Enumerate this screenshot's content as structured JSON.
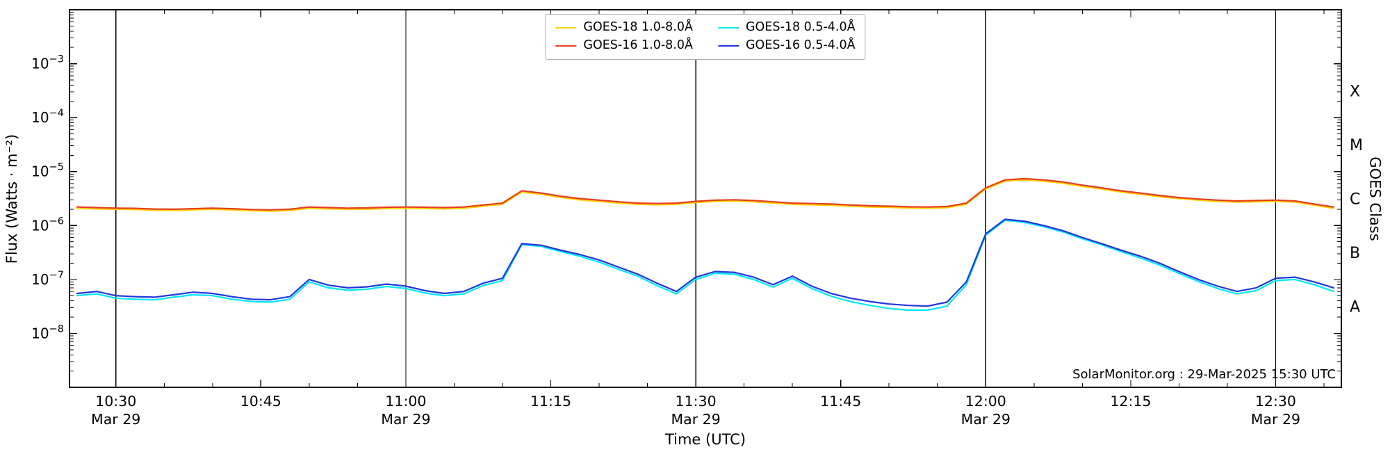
{
  "figure": {
    "watermark": "SolarMonitor.org : 29-Mar-2025 15:30 UTC",
    "xlabel": "Time (UTC)",
    "ylabel_left": "Flux (Watts · m⁻²)",
    "ylabel_right": "GOES Class",
    "background_color": "#ffffff",
    "frame_color": "#000000"
  },
  "chart_data": {
    "type": "line",
    "title": "",
    "xlabel": "Time (UTC)",
    "ylabel": "Flux (Watts · m⁻²)",
    "ylabel_right": "GOES Class",
    "y_scale": "log",
    "ylim": [
      1e-09,
      0.01
    ],
    "x_domain_minutes": [
      25.2,
      156.8
    ],
    "x_minutes_reference": "minutes after 10:00 UTC on Mar 29",
    "x_minor_tick_step_minutes": 5,
    "grid": "vertical black lines at 30-minute marks only",
    "legend_position": "top-center",
    "vertical_line_minutes": [
      30,
      60,
      90,
      120,
      150
    ],
    "x_ticks": [
      {
        "t": 30,
        "label": "10:30",
        "date": "Mar 29"
      },
      {
        "t": 45,
        "label": "10:45"
      },
      {
        "t": 60,
        "label": "11:00",
        "date": "Mar 29"
      },
      {
        "t": 75,
        "label": "11:15"
      },
      {
        "t": 90,
        "label": "11:30",
        "date": "Mar 29"
      },
      {
        "t": 105,
        "label": "11:45"
      },
      {
        "t": 120,
        "label": "12:00",
        "date": "Mar 29"
      },
      {
        "t": 135,
        "label": "12:15"
      },
      {
        "t": 150,
        "label": "12:30",
        "date": "Mar 29"
      }
    ],
    "y_tick_exponents": [
      -3,
      -4,
      -5,
      -6,
      -7,
      -8
    ],
    "goes_class_labels": [
      {
        "label": "X",
        "log10_flux": -3.5
      },
      {
        "label": "M",
        "log10_flux": -4.5
      },
      {
        "label": "C",
        "log10_flux": -5.5
      },
      {
        "label": "B",
        "log10_flux": -6.5
      },
      {
        "label": "A",
        "log10_flux": -7.5
      }
    ],
    "t_minutes": [
      26,
      28,
      30,
      32,
      34,
      36,
      38,
      40,
      42,
      44,
      46,
      48,
      50,
      52,
      54,
      56,
      58,
      60,
      62,
      64,
      66,
      68,
      70,
      72,
      74,
      76,
      78,
      80,
      82,
      84,
      86,
      88,
      90,
      92,
      94,
      96,
      98,
      100,
      102,
      104,
      106,
      108,
      110,
      112,
      114,
      116,
      118,
      120,
      122,
      124,
      126,
      128,
      130,
      132,
      134,
      136,
      138,
      140,
      142,
      144,
      146,
      148,
      150,
      152,
      154,
      156
    ],
    "series": [
      {
        "name": "GOES-18 1.0-8.0Å",
        "color": "#ffd200",
        "values": [
          2.09e-06,
          2.04e-06,
          2e-06,
          1.98e-06,
          1.92e-06,
          1.9e-06,
          1.95e-06,
          2e-06,
          1.95e-06,
          1.88e-06,
          1.85e-06,
          1.9e-06,
          2.09e-06,
          2.04e-06,
          2e-06,
          2.01e-06,
          2.07e-06,
          2.09e-06,
          2.07e-06,
          2.04e-06,
          2.09e-06,
          2.28e-06,
          2.47e-06,
          4.18e-06,
          3.8e-06,
          3.33e-06,
          2.99e-06,
          2.8e-06,
          2.61e-06,
          2.47e-06,
          2.42e-06,
          2.47e-06,
          2.66e-06,
          2.8e-06,
          2.85e-06,
          2.76e-06,
          2.61e-06,
          2.47e-06,
          2.42e-06,
          2.38e-06,
          2.28e-06,
          2.2e-06,
          2.17e-06,
          2.11e-06,
          2.09e-06,
          2.14e-06,
          2.47e-06,
          4.75e-06,
          6.65e-06,
          7.03e-06,
          6.65e-06,
          6.08e-06,
          5.32e-06,
          4.75e-06,
          4.18e-06,
          3.8e-06,
          3.42e-06,
          3.14e-06,
          2.95e-06,
          2.8e-06,
          2.71e-06,
          2.76e-06,
          2.8e-06,
          2.71e-06,
          2.38e-06,
          2.09e-06
        ]
      },
      {
        "name": "GOES-18 0.5-4.0Å",
        "color": "#00e8f0",
        "values": [
          5e-08,
          5.4e-08,
          4.5e-08,
          4.3e-08,
          4.2e-08,
          4.7e-08,
          5.2e-08,
          5e-08,
          4.3e-08,
          3.9e-08,
          3.8e-08,
          4.3e-08,
          9e-08,
          7e-08,
          6.3e-08,
          6.6e-08,
          7.4e-08,
          6.8e-08,
          5.6e-08,
          5e-08,
          5.4e-08,
          7.7e-08,
          9.5e-08,
          4.4e-07,
          4.1e-07,
          3.3e-07,
          2.7e-07,
          2.1e-07,
          1.55e-07,
          1.15e-07,
          7.7e-08,
          5.4e-08,
          1e-07,
          1.3e-07,
          1.25e-07,
          1e-07,
          7.2e-08,
          1.05e-07,
          6.8e-08,
          4.9e-08,
          3.9e-08,
          3.3e-08,
          2.9e-08,
          2.7e-08,
          2.7e-08,
          3.2e-08,
          8e-08,
          6.6e-07,
          1.25e-06,
          1.15e-06,
          9.5e-07,
          7.6e-07,
          5.7e-07,
          4.4e-07,
          3.3e-07,
          2.5e-07,
          1.85e-07,
          1.3e-07,
          9.2e-08,
          6.8e-08,
          5.4e-08,
          6.2e-08,
          9.5e-08,
          1e-07,
          8e-08,
          6e-08
        ]
      },
      {
        "name": "GOES-16 1.0-8.0Å",
        "color": "#e83d20",
        "values": [
          2.2e-06,
          2.15e-06,
          2.1e-06,
          2.08e-06,
          2.02e-06,
          2e-06,
          2.05e-06,
          2.1e-06,
          2.05e-06,
          1.98e-06,
          1.95e-06,
          2e-06,
          2.2e-06,
          2.15e-06,
          2.1e-06,
          2.12e-06,
          2.18e-06,
          2.2e-06,
          2.18e-06,
          2.15e-06,
          2.2e-06,
          2.4e-06,
          2.6e-06,
          4.4e-06,
          4e-06,
          3.5e-06,
          3.15e-06,
          2.95e-06,
          2.75e-06,
          2.6e-06,
          2.55e-06,
          2.6e-06,
          2.8e-06,
          2.95e-06,
          3e-06,
          2.9e-06,
          2.75e-06,
          2.6e-06,
          2.55e-06,
          2.5e-06,
          2.4e-06,
          2.32e-06,
          2.28e-06,
          2.22e-06,
          2.2e-06,
          2.25e-06,
          2.6e-06,
          5e-06,
          7e-06,
          7.4e-06,
          7e-06,
          6.4e-06,
          5.6e-06,
          5e-06,
          4.4e-06,
          4e-06,
          3.6e-06,
          3.3e-06,
          3.1e-06,
          2.95e-06,
          2.85e-06,
          2.9e-06,
          2.95e-06,
          2.85e-06,
          2.5e-06,
          2.2e-06
        ]
      },
      {
        "name": "GOES-16 0.5-4.0Å",
        "color": "#2136e0",
        "values": [
          5.5e-08,
          6e-08,
          5e-08,
          4.8e-08,
          4.7e-08,
          5.2e-08,
          5.8e-08,
          5.5e-08,
          4.8e-08,
          4.3e-08,
          4.2e-08,
          4.8e-08,
          1e-07,
          7.8e-08,
          7e-08,
          7.3e-08,
          8.2e-08,
          7.5e-08,
          6.2e-08,
          5.5e-08,
          6e-08,
          8.5e-08,
          1.05e-07,
          4.6e-07,
          4.3e-07,
          3.5e-07,
          2.9e-07,
          2.3e-07,
          1.7e-07,
          1.25e-07,
          8.5e-08,
          6e-08,
          1.1e-07,
          1.4e-07,
          1.35e-07,
          1.1e-07,
          8e-08,
          1.15e-07,
          7.5e-08,
          5.5e-08,
          4.5e-08,
          3.9e-08,
          3.5e-08,
          3.3e-08,
          3.2e-08,
          3.8e-08,
          9e-08,
          7e-07,
          1.3e-06,
          1.2e-06,
          1e-06,
          8e-07,
          6e-07,
          4.6e-07,
          3.5e-07,
          2.7e-07,
          2e-07,
          1.4e-07,
          1e-07,
          7.5e-08,
          6e-08,
          7e-08,
          1.05e-07,
          1.1e-07,
          9e-08,
          7e-08
        ]
      }
    ]
  }
}
